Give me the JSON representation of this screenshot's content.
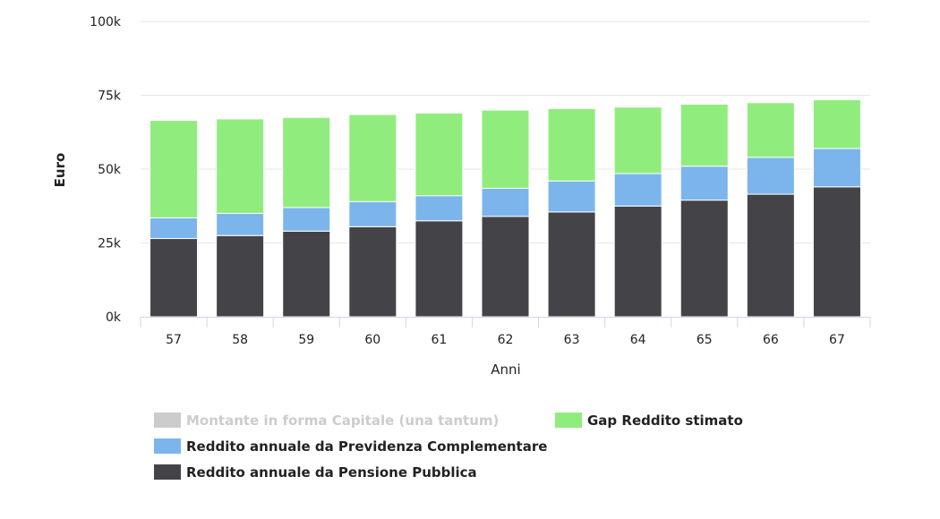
{
  "chart_data": {
    "type": "bar",
    "stacked": true,
    "xlabel": "Anni",
    "ylabel": "Euro",
    "ylim": [
      0,
      100000
    ],
    "yticks": [
      0,
      25000,
      50000,
      75000,
      100000
    ],
    "ytick_labels": [
      "0k",
      "25k",
      "50k",
      "75k",
      "100k"
    ],
    "grid": true,
    "legend_position": "bottom-left",
    "categories": [
      "57",
      "58",
      "59",
      "60",
      "61",
      "62",
      "63",
      "64",
      "65",
      "66",
      "67"
    ],
    "series": [
      {
        "name": "Reddito annuale da Pensione Pubblica",
        "color": "#434348",
        "values": [
          26500,
          27500,
          29000,
          30500,
          32500,
          34000,
          35500,
          37500,
          39500,
          41500,
          44000
        ]
      },
      {
        "name": "Reddito annuale da Previdenza Complementare",
        "color": "#7cb5ec",
        "values": [
          7000,
          7500,
          8000,
          8500,
          8500,
          9500,
          10500,
          11000,
          11500,
          12500,
          13000
        ]
      },
      {
        "name": "Gap Reddito stimato",
        "color": "#90ed7d",
        "values": [
          33000,
          32000,
          30500,
          29500,
          28000,
          26500,
          24500,
          22500,
          21000,
          18500,
          16500
        ]
      }
    ],
    "legend": [
      {
        "name": "Montante in forma Capitale (una tantum)",
        "color": "#cccccc",
        "hidden": true
      },
      {
        "name": "Gap Reddito stimato",
        "color": "#90ed7d",
        "hidden": false
      },
      {
        "name": "Reddito annuale da Previdenza Complementare",
        "color": "#7cb5ec",
        "hidden": false
      },
      {
        "name": "Reddito annuale da Pensione Pubblica",
        "color": "#434348",
        "hidden": false
      }
    ]
  }
}
